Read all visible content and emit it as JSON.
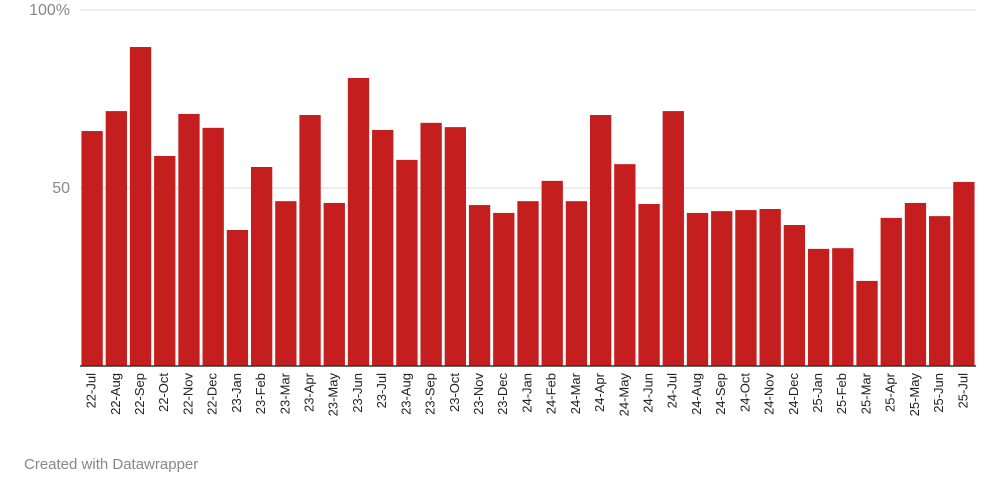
{
  "chart_data": {
    "type": "bar",
    "categories": [
      "22-Jul",
      "22-Aug",
      "22-Sep",
      "22-Oct",
      "22-Nov",
      "22-Dec",
      "23-Jan",
      "23-Feb",
      "23-Mar",
      "23-Apr",
      "23-May",
      "23-Jun",
      "23-Jul",
      "23-Aug",
      "23-Sep",
      "23-Oct",
      "23-Nov",
      "23-Dec",
      "24-Jan",
      "24-Feb",
      "24-Mar",
      "24-Apr",
      "24-May",
      "24-Jun",
      "24-Jul",
      "24-Aug",
      "24-Sep",
      "24-Oct",
      "24-Nov",
      "24-Dec",
      "25-Jan",
      "25-Feb",
      "25-Mar",
      "25-Apr",
      "25-May",
      "25-Jun",
      "25-Jul"
    ],
    "values": [
      66.0,
      71.6,
      89.6,
      59.0,
      70.8,
      66.9,
      38.2,
      55.9,
      46.3,
      70.5,
      45.8,
      80.9,
      66.3,
      57.9,
      68.3,
      67.1,
      45.2,
      43.0,
      46.3,
      52.0,
      46.3,
      70.5,
      56.7,
      45.5,
      71.6,
      43.0,
      43.5,
      43.8,
      44.1,
      39.6,
      32.9,
      33.1,
      23.9,
      41.6,
      45.8,
      42.1,
      51.7
    ],
    "color": "#c41e1e",
    "ylim": [
      0,
      100
    ],
    "yticks": [
      50,
      {
        "value": 100,
        "label": "100%"
      }
    ],
    "grid": true,
    "footer": "Created with Datawrapper"
  }
}
